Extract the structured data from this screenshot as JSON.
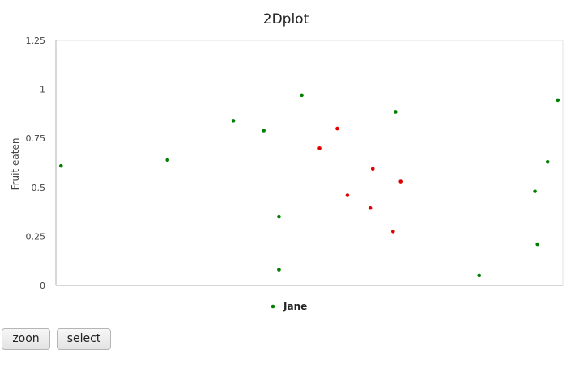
{
  "chart_data": {
    "type": "scatter",
    "title": "2Dplot",
    "xlabel": "",
    "ylabel": "Fruit eaten",
    "ylim": [
      0,
      1.25
    ],
    "yticks": [
      "0",
      "0.25",
      "0.5",
      "0.75",
      "1",
      "1.25"
    ],
    "grid": false,
    "legend_position": "bottom",
    "series": [
      {
        "name": "Jane",
        "color": "#008000",
        "x": [
          0.01,
          0.22,
          0.35,
          0.41,
          0.44,
          0.44,
          0.485,
          0.67,
          0.835,
          0.945,
          0.95,
          0.97,
          0.99
        ],
        "y": [
          0.61,
          0.64,
          0.84,
          0.79,
          0.08,
          0.35,
          0.97,
          0.885,
          0.05,
          0.48,
          0.21,
          0.63,
          0.945
        ]
      },
      {
        "color": "#e00000",
        "x": [
          0.52,
          0.555,
          0.575,
          0.62,
          0.625,
          0.665,
          0.68
        ],
        "y": [
          0.7,
          0.8,
          0.46,
          0.395,
          0.595,
          0.275,
          0.53
        ]
      }
    ]
  },
  "controls": {
    "zoom_label": "zoon",
    "select_label": "select"
  }
}
